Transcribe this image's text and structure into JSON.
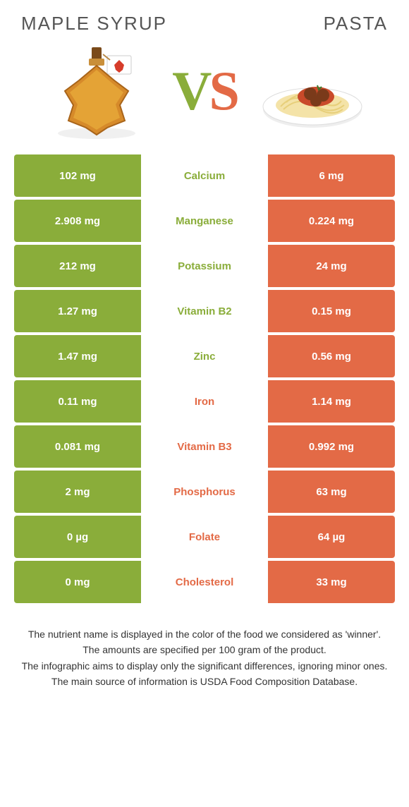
{
  "colors": {
    "left": "#8aad3a",
    "right": "#e36a46",
    "mid_bg": "#ffffff"
  },
  "titles": {
    "left": "Maple syrup",
    "right": "Pasta"
  },
  "vs": {
    "v": "V",
    "s": "S"
  },
  "rows": [
    {
      "left": "102 mg",
      "mid": "Calcium",
      "winner": "left",
      "right": "6 mg"
    },
    {
      "left": "2.908 mg",
      "mid": "Manganese",
      "winner": "left",
      "right": "0.224 mg"
    },
    {
      "left": "212 mg",
      "mid": "Potassium",
      "winner": "left",
      "right": "24 mg"
    },
    {
      "left": "1.27 mg",
      "mid": "Vitamin B2",
      "winner": "left",
      "right": "0.15 mg"
    },
    {
      "left": "1.47 mg",
      "mid": "Zinc",
      "winner": "left",
      "right": "0.56 mg"
    },
    {
      "left": "0.11 mg",
      "mid": "Iron",
      "winner": "right",
      "right": "1.14 mg"
    },
    {
      "left": "0.081 mg",
      "mid": "Vitamin B3",
      "winner": "right",
      "right": "0.992 mg"
    },
    {
      "left": "2 mg",
      "mid": "Phosphorus",
      "winner": "right",
      "right": "63 mg"
    },
    {
      "left": "0 µg",
      "mid": "Folate",
      "winner": "right",
      "right": "64 µg"
    },
    {
      "left": "0 mg",
      "mid": "Cholesterol",
      "winner": "right",
      "right": "33 mg"
    }
  ],
  "notes": [
    "The nutrient name is displayed in the color of the food we considered as 'winner'.",
    "The amounts are specified per 100 gram of the product.",
    "The infographic aims to display only the significant differences, ignoring minor ones.",
    "The main source of information is USDA Food Composition Database."
  ]
}
